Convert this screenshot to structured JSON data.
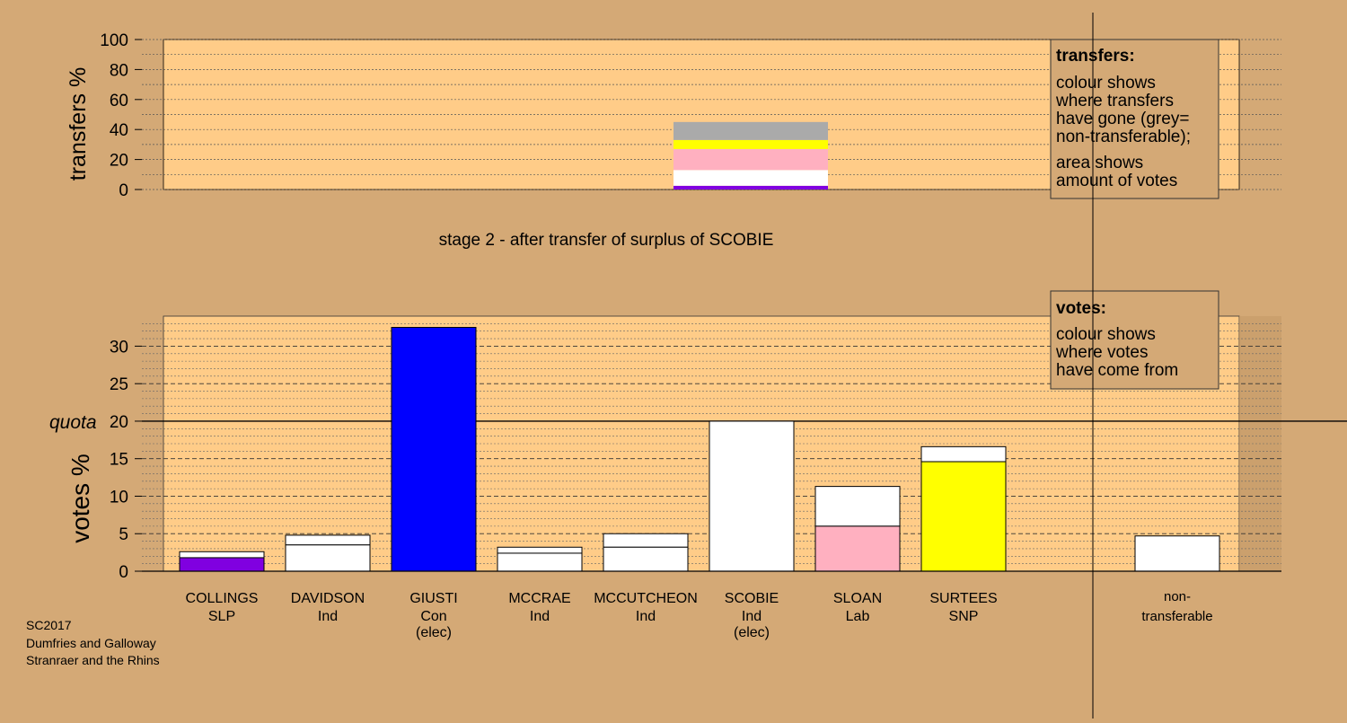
{
  "colors": {
    "page_bg": "#d4a976",
    "plot_bg": "#ffcc88",
    "grey": "#aaaaaa",
    "white": "#ffffff",
    "purple": "#8000e0",
    "blue": "#0000ff",
    "pink": "#ffb0c0",
    "yellow": "#ffff00"
  },
  "chart_data": [
    {
      "type": "bar",
      "name": "transfers",
      "ylabel": "transfers %",
      "ylim": [
        0,
        100
      ],
      "yticks": [
        0,
        20,
        40,
        60,
        80,
        100
      ],
      "caption": "stage 2 - after transfer of surplus of SCOBIE",
      "transfer_bar": {
        "candidate_index": 5,
        "segments": [
          {
            "color": "purple",
            "from": 0,
            "to": 2.5
          },
          {
            "color": "white",
            "from": 2.5,
            "to": 13
          },
          {
            "color": "pink",
            "from": 13,
            "to": 27
          },
          {
            "color": "yellow",
            "from": 27,
            "to": 33
          },
          {
            "color": "grey",
            "from": 33,
            "to": 45
          }
        ]
      },
      "legend": {
        "title": "transfers:",
        "lines": [
          "colour shows",
          "where transfers",
          "have gone (grey=",
          "non-transferable);"
        ],
        "lines2": [
          "area shows",
          "amount of votes"
        ]
      }
    },
    {
      "type": "bar",
      "name": "votes",
      "ylabel": "votes %",
      "ylim": [
        0,
        34
      ],
      "yticks": [
        0,
        5,
        10,
        15,
        20,
        25,
        30
      ],
      "quota": {
        "label": "quota",
        "value": 20
      },
      "categories": [
        {
          "name": "COLLINGS",
          "party": "SLP",
          "extra": ""
        },
        {
          "name": "DAVIDSON",
          "party": "Ind",
          "extra": ""
        },
        {
          "name": "GIUSTI",
          "party": "Con",
          "extra": "(elec)"
        },
        {
          "name": "MCCRAE",
          "party": "Ind",
          "extra": ""
        },
        {
          "name": "MCCUTCHEON",
          "party": "Ind",
          "extra": ""
        },
        {
          "name": "SCOBIE",
          "party": "Ind",
          "extra": "(elec)"
        },
        {
          "name": "SLOAN",
          "party": "Lab",
          "extra": ""
        },
        {
          "name": "SURTEES",
          "party": "SNP",
          "extra": ""
        }
      ],
      "bars": [
        {
          "base": 1.8,
          "base_color": "purple",
          "total": 2.6
        },
        {
          "base": 3.5,
          "base_color": "white",
          "total": 4.8
        },
        {
          "base": 32.5,
          "base_color": "blue",
          "total": 32.5
        },
        {
          "base": 2.4,
          "base_color": "white",
          "total": 3.2
        },
        {
          "base": 3.2,
          "base_color": "white",
          "total": 5.0
        },
        {
          "base": 20.0,
          "base_color": "white",
          "total": 20.0
        },
        {
          "base": 6.0,
          "base_color": "pink",
          "total": 11.3
        },
        {
          "base": 14.6,
          "base_color": "yellow",
          "total": 16.6
        }
      ],
      "nontransferable": {
        "label1": "non-",
        "label2": "transferable",
        "value": 4.7
      },
      "legend": {
        "title": "votes:",
        "lines": [
          "colour shows",
          "where votes",
          "have come from"
        ]
      }
    }
  ],
  "footer": {
    "line1": "SC2017",
    "line2": "Dumfries and Galloway",
    "line3": "Stranraer and the Rhins"
  }
}
